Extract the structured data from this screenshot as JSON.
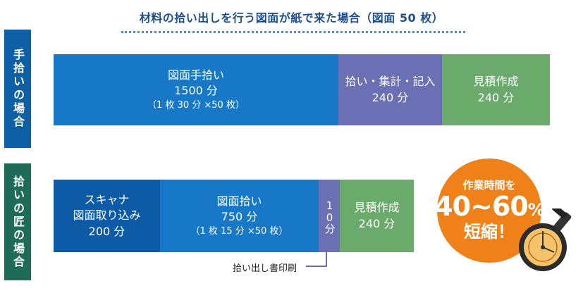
{
  "title": "材料の拾い出しを行う図面が紙で来た場合（図面 50 枚）",
  "rows": [
    {
      "label": "手拾いの場合",
      "color": "#0d5fa6"
    },
    {
      "label": "拾いの匠の場合",
      "color": "#1e6b57"
    }
  ],
  "chart_data": {
    "type": "bar",
    "orientation": "horizontal-stacked",
    "unit": "分",
    "title": "材料の拾い出しを行う図面が紙で来た場合（図面 50 枚）",
    "rows": [
      {
        "label": "手拾いの場合",
        "segments": [
          {
            "name": "図面手拾い",
            "value": 1500,
            "value_label": "1500 分",
            "note": "（1 枚 30 分 ×50 枚）",
            "color": "#1878c8"
          },
          {
            "name": "拾い・集計・記入",
            "value": 240,
            "value_label": "240 分",
            "color": "#6b6fb3"
          },
          {
            "name": "見積作成",
            "value": 240,
            "value_label": "240 分",
            "color": "#6aab6c"
          }
        ]
      },
      {
        "label": "拾いの匠の場合",
        "segments": [
          {
            "name": "スキャナ図面取り込み",
            "line1": "スキャナ",
            "line2": "図面取り込み",
            "value": 200,
            "value_label": "200 分",
            "color": "#0d5ba6"
          },
          {
            "name": "図面拾い",
            "value": 750,
            "value_label": "750 分",
            "note": "（1 枚 15 分 ×50 枚）",
            "color": "#1878c8"
          },
          {
            "name": "拾い出し書印刷",
            "value": 10,
            "value_label": "10分",
            "color": "#6b6fb3",
            "vertical": true
          },
          {
            "name": "見積作成",
            "value": 240,
            "value_label": "240 分",
            "color": "#6aab6c"
          }
        ]
      }
    ]
  },
  "callout": "拾い出し書印刷",
  "badge": {
    "line1": "作業時間を",
    "line2_num": "40~60",
    "line2_pct": "%",
    "line3": "短縮！",
    "color": "#ef8118"
  }
}
